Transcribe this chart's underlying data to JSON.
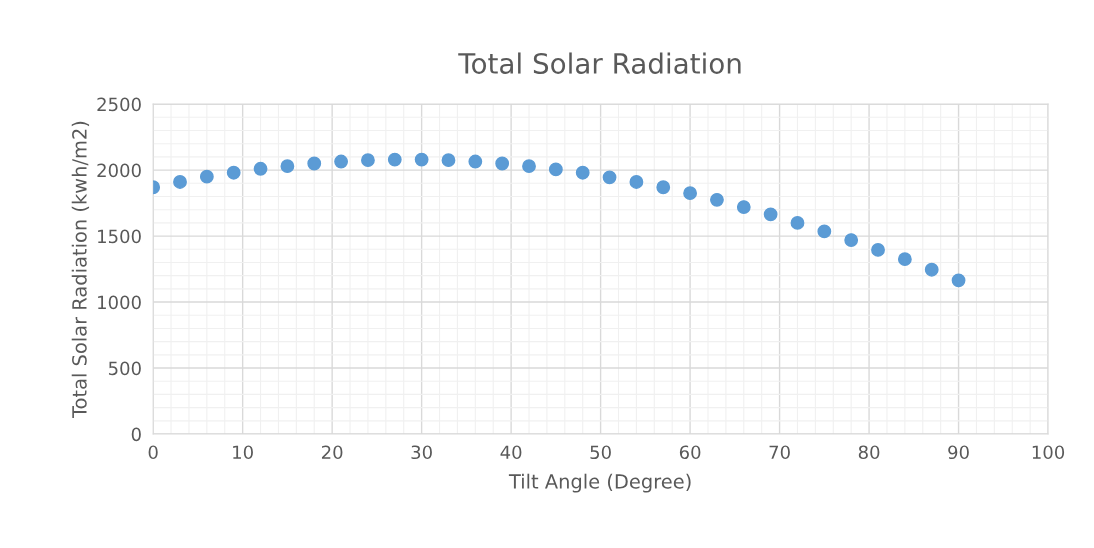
{
  "chart_data": {
    "type": "scatter",
    "title": "Total Solar Radiation",
    "xlabel": "Tilt Angle (Degree)",
    "ylabel": "Total Solar Radiation (kwh/m2)",
    "x": [
      0,
      3,
      6,
      9,
      12,
      15,
      18,
      21,
      24,
      27,
      30,
      33,
      36,
      39,
      42,
      45,
      48,
      51,
      54,
      57,
      60,
      63,
      66,
      69,
      72,
      75,
      78,
      81,
      84,
      87,
      90
    ],
    "series": [
      {
        "color": "#5b9bd5",
        "values": [
          1870,
          1910,
          1950,
          1980,
          2010,
          2030,
          2050,
          2065,
          2075,
          2080,
          2080,
          2075,
          2065,
          2050,
          2030,
          2005,
          1980,
          1945,
          1910,
          1870,
          1825,
          1775,
          1720,
          1665,
          1600,
          1535,
          1470,
          1395,
          1325,
          1245,
          1165
        ]
      }
    ],
    "xlim": [
      0,
      100
    ],
    "xticks": [
      0,
      10,
      20,
      30,
      40,
      50,
      60,
      70,
      80,
      90,
      100
    ],
    "ylim": [
      0,
      2500
    ],
    "yticks": [
      0,
      500,
      1000,
      1500,
      2000,
      2500
    ],
    "grid": true,
    "marker": "circle",
    "legend": false
  }
}
